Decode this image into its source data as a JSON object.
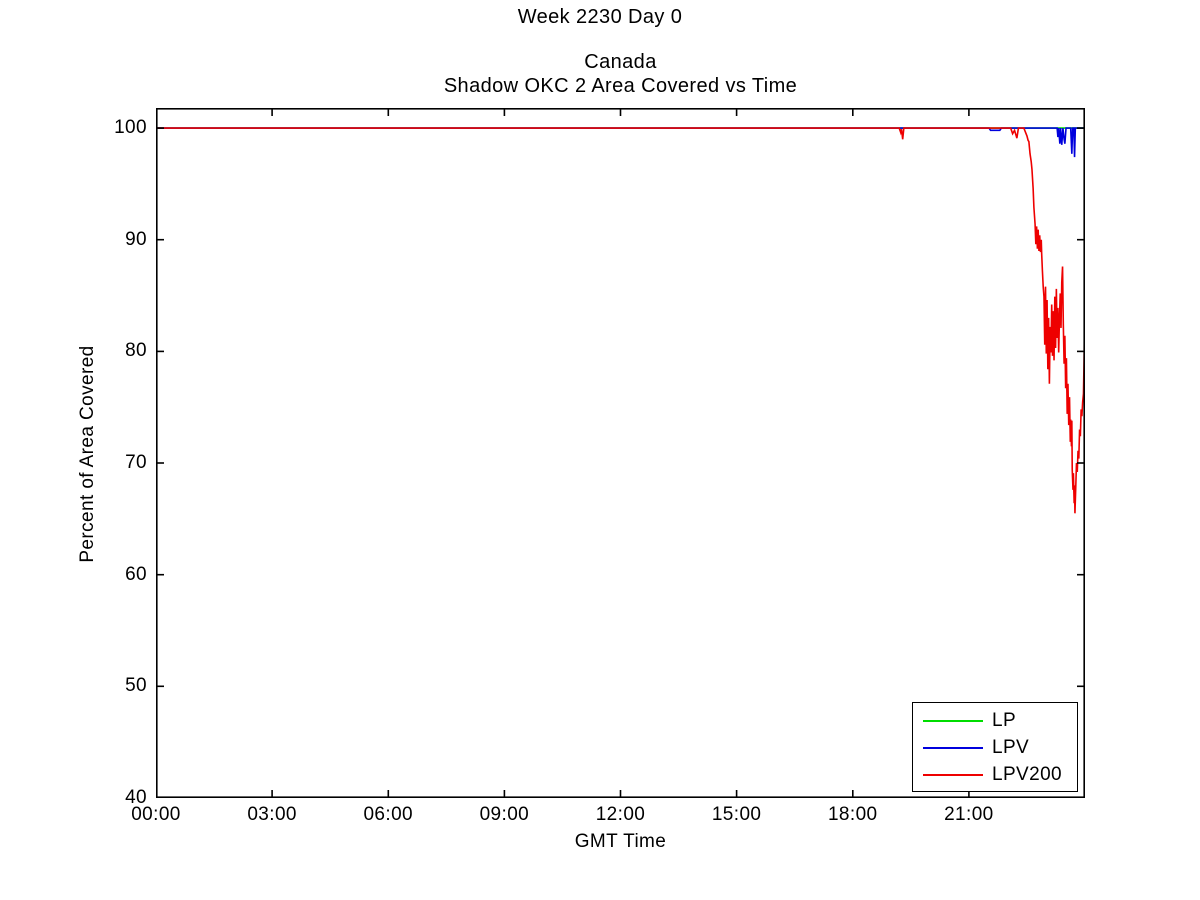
{
  "figure": {
    "suptitle": "Week 2230 Day 0",
    "title_line1": "Canada",
    "title_line2": "Shadow OKC 2 Area Covered vs Time",
    "xlabel": "GMT Time",
    "ylabel": "Percent of Area Covered"
  },
  "colors": {
    "lp_green": "#00DD00",
    "lpv_blue": "#0000DD",
    "lpv200_red": "#EE0000",
    "axis_black": "#000000",
    "background": "#FFFFFF"
  },
  "chart_data": {
    "type": "line",
    "title": "Week 2230 Day 0 / Canada / Shadow OKC 2 Area Covered vs Time",
    "xlabel": "GMT Time",
    "ylabel": "Percent of Area Covered",
    "xlim": [
      0,
      24
    ],
    "ylim": [
      40,
      101.8
    ],
    "grid": false,
    "x_ticks": [
      {
        "value": 0,
        "label": "00:00"
      },
      {
        "value": 3,
        "label": "03:00"
      },
      {
        "value": 6,
        "label": "06:00"
      },
      {
        "value": 9,
        "label": "09:00"
      },
      {
        "value": 12,
        "label": "12:00"
      },
      {
        "value": 15,
        "label": "15:00"
      },
      {
        "value": 18,
        "label": "18:00"
      },
      {
        "value": 21,
        "label": "21:00"
      },
      {
        "value": 24,
        "label": ""
      }
    ],
    "y_ticks": [
      {
        "value": 40,
        "label": "40"
      },
      {
        "value": 50,
        "label": "50"
      },
      {
        "value": 60,
        "label": "60"
      },
      {
        "value": 70,
        "label": "70"
      },
      {
        "value": 80,
        "label": "80"
      },
      {
        "value": 90,
        "label": "90"
      },
      {
        "value": 100,
        "label": "100"
      }
    ],
    "legend": {
      "position": "bottom-right",
      "entries": [
        {
          "name": "LP",
          "color": "#00DD00"
        },
        {
          "name": "LPV",
          "color": "#0000DD"
        },
        {
          "name": "LPV200",
          "color": "#EE0000"
        }
      ]
    },
    "series": [
      {
        "name": "LP",
        "color": "#00DD00",
        "points": [
          [
            0,
            100
          ],
          [
            24,
            100
          ]
        ]
      },
      {
        "name": "LPV",
        "color": "#0000DD",
        "points": [
          [
            0,
            100
          ],
          [
            21.52,
            100
          ],
          [
            21.56,
            99.8
          ],
          [
            21.8,
            99.8
          ],
          [
            21.84,
            100
          ],
          [
            23.28,
            100
          ],
          [
            23.3,
            99.2
          ],
          [
            23.32,
            100
          ],
          [
            23.35,
            98.6
          ],
          [
            23.37,
            100
          ],
          [
            23.4,
            98.5
          ],
          [
            23.43,
            100
          ],
          [
            23.46,
            99.0
          ],
          [
            23.48,
            98.6
          ],
          [
            23.51,
            100
          ],
          [
            23.63,
            100
          ],
          [
            23.66,
            97.7
          ],
          [
            23.68,
            100
          ],
          [
            23.71,
            100
          ],
          [
            23.73,
            97.4
          ],
          [
            23.75,
            100
          ],
          [
            24,
            100
          ]
        ]
      },
      {
        "name": "LPV200",
        "color": "#EE0000",
        "points": [
          [
            0,
            100
          ],
          [
            19.2,
            100
          ],
          [
            19.24,
            99.6
          ],
          [
            19.26,
            99.9
          ],
          [
            19.29,
            99.0
          ],
          [
            19.32,
            100
          ],
          [
            22.08,
            100
          ],
          [
            22.13,
            99.5
          ],
          [
            22.18,
            99.8
          ],
          [
            22.24,
            99.1
          ],
          [
            22.28,
            100
          ],
          [
            22.42,
            100
          ],
          [
            22.5,
            99.3
          ],
          [
            22.53,
            98.9
          ],
          [
            22.55,
            98.8
          ],
          [
            22.58,
            97.7
          ],
          [
            22.61,
            97.0
          ],
          [
            22.63,
            96.3
          ],
          [
            22.66,
            94.6
          ],
          [
            22.68,
            92.9
          ],
          [
            22.71,
            91.4
          ],
          [
            22.73,
            89.6
          ],
          [
            22.75,
            91.2
          ],
          [
            22.77,
            89.2
          ],
          [
            22.79,
            90.9
          ],
          [
            22.81,
            89.0
          ],
          [
            22.83,
            90.4
          ],
          [
            22.85,
            88.9
          ],
          [
            22.87,
            90.0
          ],
          [
            22.88,
            88.8
          ],
          [
            22.9,
            87.2
          ],
          [
            22.92,
            85.8
          ],
          [
            22.94,
            84.9
          ],
          [
            22.96,
            80.6
          ],
          [
            22.98,
            85.8
          ],
          [
            23.0,
            79.8
          ],
          [
            23.02,
            84.6
          ],
          [
            23.04,
            78.4
          ],
          [
            23.06,
            83.0
          ],
          [
            23.08,
            77.1
          ],
          [
            23.1,
            82.2
          ],
          [
            23.12,
            79.9
          ],
          [
            23.14,
            84.2
          ],
          [
            23.16,
            79.6
          ],
          [
            23.18,
            83.6
          ],
          [
            23.2,
            79.2
          ],
          [
            23.22,
            84.9
          ],
          [
            23.24,
            80.3
          ],
          [
            23.26,
            85.6
          ],
          [
            23.28,
            81.2
          ],
          [
            23.3,
            83.9
          ],
          [
            23.32,
            79.9
          ],
          [
            23.34,
            82.9
          ],
          [
            23.36,
            85.2
          ],
          [
            23.38,
            82.1
          ],
          [
            23.4,
            86.2
          ],
          [
            23.42,
            87.6
          ],
          [
            23.44,
            82.4
          ],
          [
            23.46,
            78.9
          ],
          [
            23.48,
            81.4
          ],
          [
            23.5,
            76.7
          ],
          [
            23.52,
            79.4
          ],
          [
            23.54,
            74.4
          ],
          [
            23.56,
            77.1
          ],
          [
            23.58,
            73.4
          ],
          [
            23.6,
            75.9
          ],
          [
            23.62,
            71.9
          ],
          [
            23.63,
            73.9
          ],
          [
            23.65,
            71.5
          ],
          [
            23.66,
            73.8
          ],
          [
            23.67,
            69.4
          ],
          [
            23.69,
            67.6
          ],
          [
            23.7,
            69.1
          ],
          [
            23.72,
            66.4
          ],
          [
            23.73,
            68.0
          ],
          [
            23.74,
            65.5
          ],
          [
            23.76,
            67.7
          ],
          [
            23.78,
            70.0
          ],
          [
            23.8,
            69.2
          ],
          [
            23.82,
            71.1
          ],
          [
            23.84,
            70.4
          ],
          [
            23.86,
            73.0
          ],
          [
            23.88,
            72.4
          ],
          [
            23.9,
            74.8
          ],
          [
            23.92,
            74.2
          ],
          [
            23.94,
            75.5
          ],
          [
            23.96,
            76.2
          ],
          [
            23.98,
            80.1
          ],
          [
            24.0,
            88.0
          ]
        ]
      }
    ]
  }
}
